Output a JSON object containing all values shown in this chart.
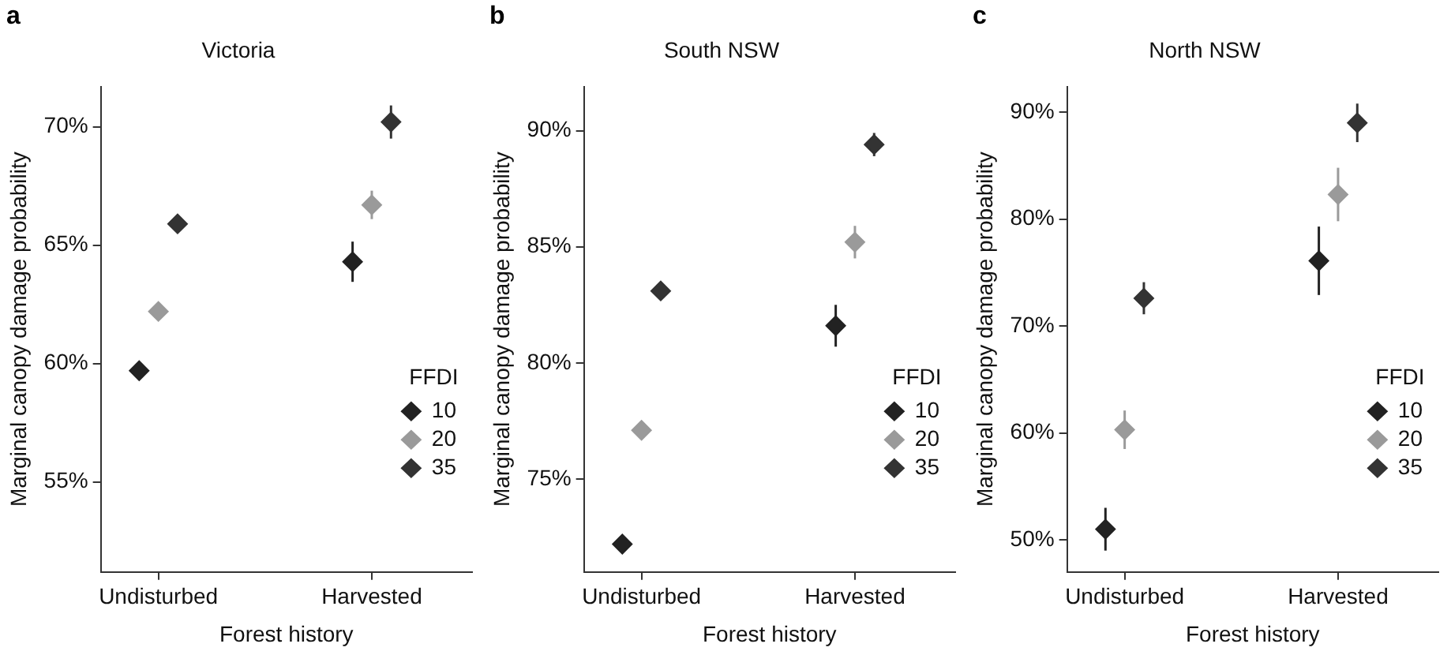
{
  "chart_data": [
    {
      "type": "scatter",
      "title": "Victoria",
      "xlabel": "Forest history",
      "ylabel": "Marginal canopy damage probability",
      "annotations": [
        "a"
      ],
      "categories": [
        "Undisturbed",
        "Harvested"
      ],
      "legend_title": "FFDI",
      "legend": "bottom right",
      "marker": "diamond",
      "grid": false,
      "ylim": [
        51.2,
        71.7
      ],
      "yticks": [
        {
          "value": 55,
          "label": "55%"
        },
        {
          "value": 60,
          "label": "60%"
        },
        {
          "value": 65,
          "label": "65%"
        },
        {
          "value": 70,
          "label": "70%"
        }
      ],
      "series": [
        {
          "name": "10",
          "color": "#222222",
          "values": [
            59.7,
            64.3
          ],
          "errors": [
            0.2,
            0.85
          ]
        },
        {
          "name": "20",
          "color": "#9a9a9a",
          "values": [
            62.2,
            66.7
          ],
          "errors": [
            0.2,
            0.6
          ]
        },
        {
          "name": "35",
          "color": "#333333",
          "values": [
            65.9,
            70.2
          ],
          "errors": [
            0.2,
            0.7
          ]
        }
      ]
    },
    {
      "type": "scatter",
      "title": "South NSW",
      "xlabel": "Forest history",
      "ylabel": "Marginal canopy damage probability",
      "annotations": [
        "b"
      ],
      "categories": [
        "Undisturbed",
        "Harvested"
      ],
      "legend_title": "FFDI",
      "legend": "bottom right",
      "marker": "diamond",
      "grid": false,
      "ylim": [
        71.0,
        91.9
      ],
      "yticks": [
        {
          "value": 75,
          "label": "75%"
        },
        {
          "value": 80,
          "label": "80%"
        },
        {
          "value": 85,
          "label": "85%"
        },
        {
          "value": 90,
          "label": "90%"
        }
      ],
      "series": [
        {
          "name": "10",
          "color": "#222222",
          "values": [
            72.2,
            81.6
          ],
          "errors": [
            0.2,
            0.9
          ]
        },
        {
          "name": "20",
          "color": "#9a9a9a",
          "values": [
            77.1,
            85.2
          ],
          "errors": [
            0.2,
            0.7
          ]
        },
        {
          "name": "35",
          "color": "#333333",
          "values": [
            83.1,
            89.4
          ],
          "errors": [
            0.2,
            0.5
          ]
        }
      ]
    },
    {
      "type": "scatter",
      "title": "North NSW",
      "xlabel": "Forest history",
      "ylabel": "Marginal canopy damage probability",
      "annotations": [
        "c"
      ],
      "categories": [
        "Undisturbed",
        "Harvested"
      ],
      "legend_title": "FFDI",
      "legend": "bottom right",
      "marker": "diamond",
      "grid": false,
      "ylim": [
        47.0,
        92.4
      ],
      "yticks": [
        {
          "value": 50,
          "label": "50%"
        },
        {
          "value": 60,
          "label": "60%"
        },
        {
          "value": 70,
          "label": "70%"
        },
        {
          "value": 80,
          "label": "80%"
        },
        {
          "value": 90,
          "label": "90%"
        }
      ],
      "series": [
        {
          "name": "10",
          "color": "#222222",
          "values": [
            51.0,
            76.1
          ],
          "errors": [
            2.0,
            3.2
          ]
        },
        {
          "name": "20",
          "color": "#9a9a9a",
          "values": [
            60.3,
            82.3
          ],
          "errors": [
            1.8,
            2.5
          ]
        },
        {
          "name": "35",
          "color": "#333333",
          "values": [
            72.6,
            89.0
          ],
          "errors": [
            1.5,
            1.8
          ]
        }
      ]
    }
  ]
}
